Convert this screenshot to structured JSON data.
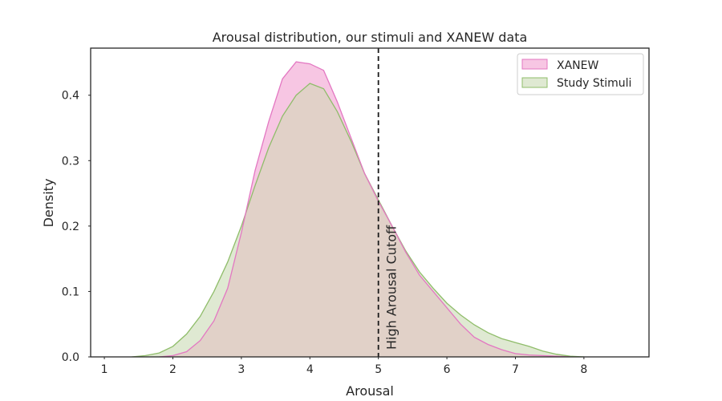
{
  "chart_data": {
    "type": "area",
    "title": "Arousal distribution, our stimuli and XANEW data",
    "xlabel": "Arousal",
    "ylabel": "Density",
    "xlim": [
      0.8,
      8.95
    ],
    "ylim": [
      0,
      0.472
    ],
    "xticks": [
      "1",
      "2",
      "3",
      "4",
      "5",
      "6",
      "7",
      "8"
    ],
    "yticks": [
      "0.0",
      "0.1",
      "0.2",
      "0.3",
      "0.4"
    ],
    "grid": false,
    "legend_position": "top-right",
    "series": [
      {
        "name": "XANEW",
        "line_color": "#e377c2",
        "fill_color": "#f7c6e3",
        "points": [
          [
            1.8,
            0.0
          ],
          [
            2.0,
            0.002
          ],
          [
            2.2,
            0.008
          ],
          [
            2.4,
            0.025
          ],
          [
            2.6,
            0.055
          ],
          [
            2.8,
            0.105
          ],
          [
            3.0,
            0.19
          ],
          [
            3.2,
            0.285
          ],
          [
            3.4,
            0.36
          ],
          [
            3.6,
            0.425
          ],
          [
            3.8,
            0.451
          ],
          [
            4.0,
            0.448
          ],
          [
            4.2,
            0.438
          ],
          [
            4.4,
            0.39
          ],
          [
            4.6,
            0.335
          ],
          [
            4.8,
            0.28
          ],
          [
            5.0,
            0.238
          ],
          [
            5.2,
            0.2
          ],
          [
            5.4,
            0.16
          ],
          [
            5.6,
            0.125
          ],
          [
            5.8,
            0.1
          ],
          [
            6.0,
            0.075
          ],
          [
            6.2,
            0.05
          ],
          [
            6.4,
            0.03
          ],
          [
            6.6,
            0.019
          ],
          [
            6.8,
            0.011
          ],
          [
            7.0,
            0.005
          ],
          [
            7.2,
            0.003
          ],
          [
            7.4,
            0.002
          ],
          [
            7.6,
            0.001
          ],
          [
            7.8,
            0.0
          ]
        ]
      },
      {
        "name": "Study Stimuli",
        "line_color": "#8fbd6a",
        "fill_color": "#dfe9d2",
        "points": [
          [
            1.4,
            0.0
          ],
          [
            1.6,
            0.002
          ],
          [
            1.8,
            0.006
          ],
          [
            2.0,
            0.016
          ],
          [
            2.2,
            0.035
          ],
          [
            2.4,
            0.062
          ],
          [
            2.6,
            0.1
          ],
          [
            2.8,
            0.145
          ],
          [
            3.0,
            0.2
          ],
          [
            3.2,
            0.262
          ],
          [
            3.4,
            0.32
          ],
          [
            3.6,
            0.368
          ],
          [
            3.8,
            0.4
          ],
          [
            4.0,
            0.418
          ],
          [
            4.2,
            0.41
          ],
          [
            4.4,
            0.375
          ],
          [
            4.6,
            0.33
          ],
          [
            4.8,
            0.28
          ],
          [
            5.0,
            0.24
          ],
          [
            5.2,
            0.2
          ],
          [
            5.4,
            0.162
          ],
          [
            5.6,
            0.13
          ],
          [
            5.8,
            0.105
          ],
          [
            6.0,
            0.082
          ],
          [
            6.2,
            0.064
          ],
          [
            6.4,
            0.049
          ],
          [
            6.6,
            0.037
          ],
          [
            6.8,
            0.028
          ],
          [
            7.0,
            0.022
          ],
          [
            7.2,
            0.016
          ],
          [
            7.4,
            0.009
          ],
          [
            7.6,
            0.004
          ],
          [
            7.8,
            0.001
          ],
          [
            8.0,
            0.0
          ]
        ]
      }
    ],
    "overlap_fill_color": "#e1d1c8",
    "cutoff": {
      "x": 5,
      "label": "High Arousal Cutoff",
      "color": "#1a1a1a",
      "style": "dashed"
    }
  }
}
